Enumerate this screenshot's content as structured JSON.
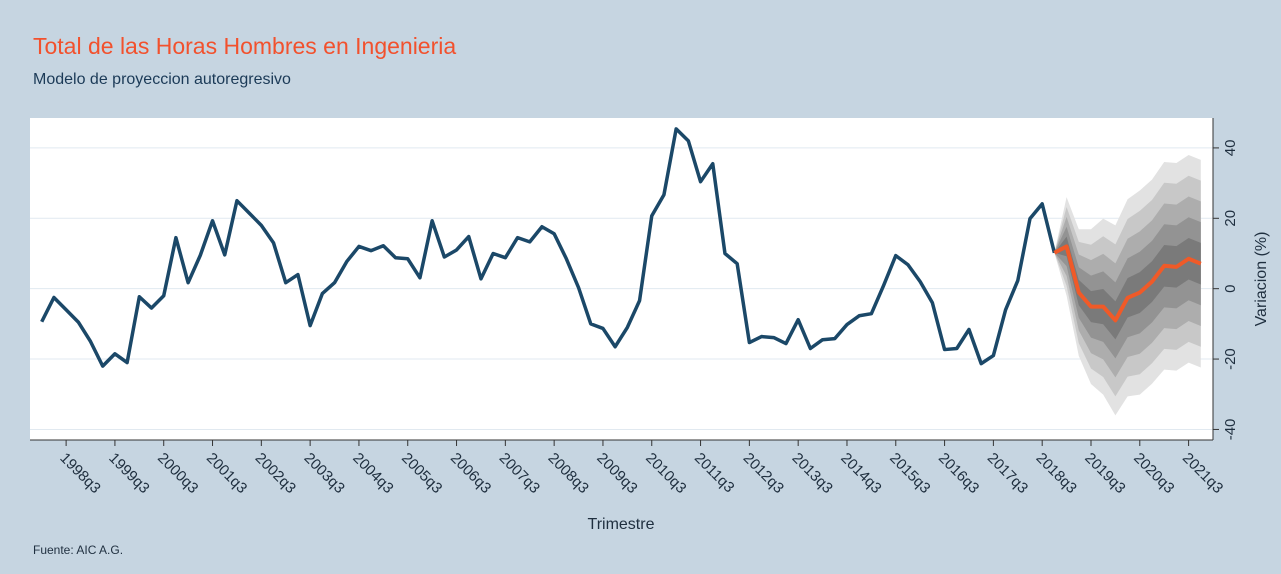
{
  "chart_data": {
    "type": "line",
    "title": "Total de las Horas Hombres en Ingenieria",
    "subtitle": "Modelo de proyeccion autoregresivo",
    "xlabel": "Trimestre",
    "ylabel": "Variacion (%)",
    "note": "Fuente: AIC A.G.",
    "xlim": [
      1997.76,
      2022.0
    ],
    "ylim": [
      -43,
      48.5
    ],
    "yticks": [
      -40,
      -20,
      0,
      20,
      40
    ],
    "grid": true,
    "xticks": [
      {
        "value": 1998.5,
        "label": "1998q3"
      },
      {
        "value": 1999.5,
        "label": "1999q3"
      },
      {
        "value": 2000.5,
        "label": "2000q3"
      },
      {
        "value": 2001.5,
        "label": "2001q3"
      },
      {
        "value": 2002.5,
        "label": "2002q3"
      },
      {
        "value": 2003.5,
        "label": "2003q3"
      },
      {
        "value": 2004.5,
        "label": "2004q3"
      },
      {
        "value": 2005.5,
        "label": "2005q3"
      },
      {
        "value": 2006.5,
        "label": "2006q3"
      },
      {
        "value": 2007.5,
        "label": "2007q3"
      },
      {
        "value": 2008.5,
        "label": "2008q3"
      },
      {
        "value": 2009.5,
        "label": "2009q3"
      },
      {
        "value": 2010.5,
        "label": "2010q3"
      },
      {
        "value": 2011.5,
        "label": "2011q3"
      },
      {
        "value": 2012.5,
        "label": "2012q3"
      },
      {
        "value": 2013.5,
        "label": "2013q3"
      },
      {
        "value": 2014.5,
        "label": "2014q3"
      },
      {
        "value": 2015.5,
        "label": "2015q3"
      },
      {
        "value": 2016.5,
        "label": "2016q3"
      },
      {
        "value": 2017.5,
        "label": "2017q3"
      },
      {
        "value": 2018.5,
        "label": "2018q3"
      },
      {
        "value": 2019.5,
        "label": "2019q3"
      },
      {
        "value": 2020.5,
        "label": "2020q3"
      },
      {
        "value": 2021.5,
        "label": "2021q3"
      }
    ],
    "bands": [
      {
        "color": "#e2e2e2",
        "x": [
          2018.75,
          2019,
          2019.25,
          2019.5,
          2019.75,
          2020,
          2020.25,
          2020.5,
          2020.75,
          2021,
          2021.25,
          2021.5,
          2021.75
        ],
        "upper": [
          10.2,
          26,
          16.9,
          16.9,
          19.9,
          18,
          25.4,
          27.9,
          31,
          36,
          35.7,
          38,
          36.6
        ],
        "lower": [
          10.2,
          -2,
          -19.1,
          -27.1,
          -30.1,
          -36,
          -30.6,
          -30.1,
          -27,
          -23,
          -23.3,
          -21,
          -22.4
        ]
      },
      {
        "color": "#c8c8c8",
        "x": [
          2018.75,
          2019,
          2019.25,
          2019.5,
          2019.75,
          2020,
          2020.25,
          2020.5,
          2020.75,
          2021,
          2021.25,
          2021.5,
          2021.75
        ],
        "upper": [
          10.2,
          23.2,
          13.3,
          12.5,
          14.9,
          12.6,
          19.8,
          22.1,
          25.2,
          30.1,
          29.8,
          32.1,
          30.7
        ],
        "lower": [
          10.2,
          0.8,
          -15.5,
          -22.7,
          -25.1,
          -30.6,
          -25,
          -24.3,
          -21.2,
          -17.1,
          -17.4,
          -15.1,
          -16.5
        ]
      },
      {
        "color": "#adadad",
        "x": [
          2018.75,
          2019,
          2019.25,
          2019.5,
          2019.75,
          2020,
          2020.25,
          2020.5,
          2020.75,
          2021,
          2021.25,
          2021.5,
          2021.75
        ],
        "upper": [
          10.2,
          20.4,
          9.7,
          8.1,
          9.9,
          7.2,
          14.2,
          16.3,
          19.4,
          24.2,
          23.9,
          26.2,
          24.8
        ],
        "lower": [
          10.2,
          3.6,
          -11.9,
          -18.3,
          -20.1,
          -25.2,
          -19.4,
          -18.5,
          -15.4,
          -11.2,
          -11.5,
          -9.2,
          -10.6
        ]
      },
      {
        "color": "#939393",
        "x": [
          2018.75,
          2019,
          2019.25,
          2019.5,
          2019.75,
          2020,
          2020.25,
          2020.5,
          2020.75,
          2021,
          2021.25,
          2021.5,
          2021.75
        ],
        "upper": [
          10.2,
          17.6,
          6.1,
          3.7,
          4.9,
          1.8,
          8.6,
          10.5,
          13.6,
          18.3,
          18,
          20.3,
          18.9
        ],
        "lower": [
          10.2,
          6.4,
          -8.3,
          -13.9,
          -15.1,
          -19.8,
          -13.8,
          -12.7,
          -9.6,
          -5.3,
          -5.6,
          -3.3,
          -4.7
        ]
      },
      {
        "color": "#7a7a7a",
        "x": [
          2018.75,
          2019,
          2019.25,
          2019.5,
          2019.75,
          2020,
          2020.25,
          2020.5,
          2020.75,
          2021,
          2021.25,
          2021.5,
          2021.75
        ],
        "upper": [
          10.2,
          14.8,
          2.5,
          -0.7,
          -0.1,
          -3.6,
          3,
          4.7,
          7.8,
          12.4,
          12.1,
          14.4,
          13
        ],
        "lower": [
          10.2,
          9.2,
          -4.7,
          -9.5,
          -10.1,
          -14.4,
          -8.2,
          -6.9,
          -3.8,
          0.6,
          0.3,
          2.6,
          1.2
        ]
      }
    ],
    "series": [
      {
        "color": "#1b4868",
        "x": [
          1998,
          1998.25,
          1998.5,
          1998.75,
          1999,
          1999.25,
          1999.5,
          1999.75,
          2000,
          2000.25,
          2000.5,
          2000.75,
          2001,
          2001.25,
          2001.5,
          2001.75,
          2002,
          2002.25,
          2002.5,
          2002.75,
          2003,
          2003.25,
          2003.5,
          2003.75,
          2004,
          2004.25,
          2004.5,
          2004.75,
          2005,
          2005.25,
          2005.5,
          2005.75,
          2006,
          2006.25,
          2006.5,
          2006.75,
          2007,
          2007.25,
          2007.5,
          2007.75,
          2008,
          2008.25,
          2008.5,
          2008.75,
          2009,
          2009.25,
          2009.5,
          2009.75,
          2010,
          2010.25,
          2010.5,
          2010.75,
          2011,
          2011.25,
          2011.5,
          2011.75,
          2012,
          2012.25,
          2012.5,
          2012.75,
          2013,
          2013.25,
          2013.5,
          2013.75,
          2014,
          2014.25,
          2014.5,
          2014.75,
          2015,
          2015.25,
          2015.5,
          2015.75,
          2016,
          2016.25,
          2016.5,
          2016.75,
          2017,
          2017.25,
          2017.5,
          2017.75,
          2018,
          2018.25,
          2018.5,
          2018.75
        ],
        "values": [
          -9.4,
          -2.5,
          -6,
          -9.5,
          -15,
          -22,
          -18.5,
          -21,
          -2.3,
          -5.5,
          -2,
          14.5,
          1.7,
          9.5,
          19.3,
          9.6,
          25,
          21.5,
          18,
          13,
          1.7,
          4,
          -10.5,
          -1.4,
          1.7,
          7.7,
          12,
          10.8,
          12.2,
          8.8,
          8.5,
          3.1,
          19.3,
          9,
          11,
          14.8,
          2.8,
          10,
          8.8,
          14.5,
          13.3,
          17.6,
          15.6,
          8.5,
          0.3,
          -10,
          -11.3,
          -16.5,
          -11,
          -3.4,
          20.7,
          26.7,
          45.4,
          42,
          30.4,
          35.5,
          10,
          7.1,
          -15.3,
          -13.6,
          -13.9,
          -15.6,
          -8.8,
          -17,
          -14.5,
          -14.2,
          -10.2,
          -7.7,
          -7.1,
          0.9,
          9.4,
          6.8,
          2,
          -4,
          -17.3,
          -17,
          -11.6,
          -21.3,
          -19,
          -6,
          2.3,
          19.9,
          24.1,
          10.2
        ]
      },
      {
        "color": "#f05a28",
        "x": [
          2018.75,
          2019,
          2019.25,
          2019.5,
          2019.75,
          2020,
          2020.25,
          2020.5,
          2020.75,
          2021,
          2021.25,
          2021.5,
          2021.75
        ],
        "values": [
          10.2,
          12,
          -1.1,
          -5.1,
          -5.1,
          -9,
          -2.6,
          -1.1,
          2,
          6.5,
          6.2,
          8.5,
          7.1
        ]
      }
    ]
  }
}
